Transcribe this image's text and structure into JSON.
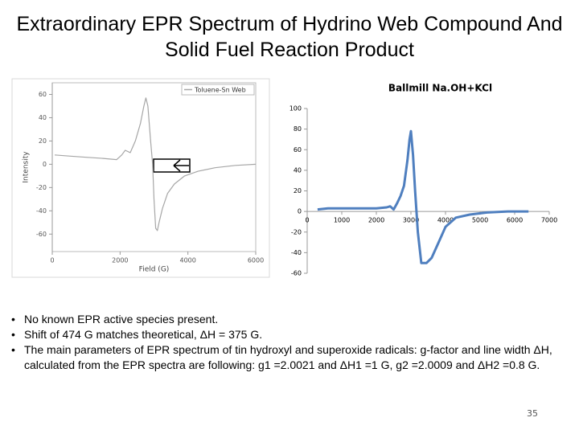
{
  "slide": {
    "title": "Extraordinary EPR Spectrum of Hydrino Web Compound And Solid Fuel Reaction Product",
    "bullets": [
      "No known EPR active species present.",
      "Shift of 474 G matches theoretical, ΔH = 375 G.",
      "The main parameters of EPR spectrum of tin hydroxyl and superoxide radicals: g-factor and line width ΔH, calculated from the EPR spectra are following:  g1 =2.0021 and ΔH1 =1 G, g2 =2.0009 and ΔH2 =0.8 G."
    ],
    "page_number": "35"
  },
  "chart_data": [
    {
      "type": "line",
      "x_label": "Field (G)",
      "y_label": "Intensity",
      "x": [
        70,
        500,
        1000,
        1500,
        1900,
        2050,
        2150,
        2300,
        2450,
        2600,
        2700,
        2760,
        2820,
        2900,
        2960,
        3000,
        3050,
        3100,
        3150,
        3250,
        3400,
        3600,
        3900,
        4300,
        4800,
        5400,
        6000
      ],
      "series": [
        {
          "name": "Toluene-Sn Web",
          "color": "#a6a6a6",
          "values": [
            8,
            7,
            6,
            5,
            4,
            8,
            12,
            10,
            20,
            35,
            50,
            57,
            50,
            20,
            0,
            -30,
            -55,
            -57,
            -50,
            -38,
            -25,
            -17,
            -10,
            -6,
            -3,
            -1,
            0
          ]
        }
      ],
      "xlim": [
        0,
        6000
      ],
      "xticks": [
        0,
        2000,
        4000,
        6000
      ],
      "ylim": [
        -75,
        70
      ],
      "yticks": [
        -60,
        -40,
        -20,
        0,
        20,
        40,
        60
      ],
      "grid": false,
      "legend": "top-right"
    },
    {
      "type": "line",
      "title": "Ballmill Na.OH+KCl",
      "x": [
        300,
        600,
        1000,
        1500,
        2000,
        2300,
        2400,
        2500,
        2600,
        2700,
        2800,
        2900,
        2960,
        3000,
        3060,
        3120,
        3200,
        3300,
        3450,
        3600,
        3800,
        4000,
        4300,
        4700,
        5200,
        5800,
        6400
      ],
      "values": [
        2,
        3,
        3,
        3,
        3,
        4,
        5,
        2,
        8,
        15,
        25,
        50,
        70,
        78,
        55,
        20,
        -20,
        -50,
        -50,
        -45,
        -30,
        -15,
        -6,
        -3,
        -1,
        0,
        0
      ],
      "color": "#4f7fbf",
      "xlim": [
        0,
        7000
      ],
      "xticks": [
        0,
        1000,
        2000,
        3000,
        4000,
        5000,
        6000,
        7000
      ],
      "ylim": [
        -60,
        100
      ],
      "yticks": [
        -60,
        -40,
        -20,
        0,
        20,
        40,
        60,
        80,
        100
      ],
      "grid": false,
      "x_axis_at_zero": true
    }
  ]
}
